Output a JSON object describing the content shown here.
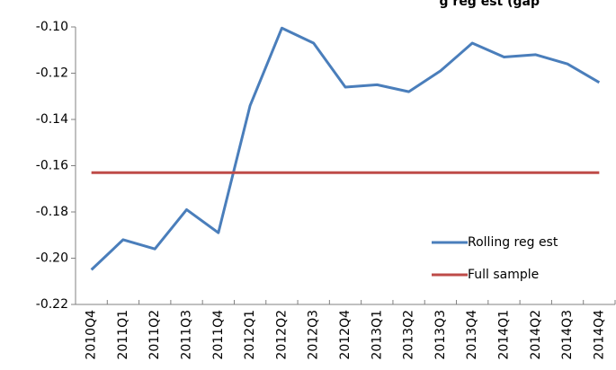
{
  "chart_data": {
    "type": "line",
    "title": "g reg est (gap",
    "categories": [
      "2010Q4",
      "2011Q1",
      "2011Q2",
      "2011Q3",
      "2011Q4",
      "2012Q1",
      "2012Q2",
      "2012Q3",
      "2012Q4",
      "2013Q1",
      "2013Q2",
      "2013Q3",
      "2013Q4",
      "2014Q1",
      "2014Q2",
      "2014Q3",
      "2014Q4"
    ],
    "series": [
      {
        "name": "Rolling reg est",
        "color": "#4a7ebb",
        "values": [
          -0.205,
          -0.192,
          -0.196,
          -0.179,
          -0.189,
          -0.134,
          -0.1005,
          -0.107,
          -0.126,
          -0.125,
          -0.128,
          -0.119,
          -0.107,
          -0.113,
          -0.112,
          -0.116,
          -0.124
        ]
      },
      {
        "name": "Full sample",
        "color": "#be4b48",
        "values": [
          -0.163,
          -0.163,
          -0.163,
          -0.163,
          -0.163,
          -0.163,
          -0.163,
          -0.163,
          -0.163,
          -0.163,
          -0.163,
          -0.163,
          -0.163,
          -0.163,
          -0.163,
          -0.163,
          -0.163
        ]
      }
    ],
    "ylim": [
      -0.22,
      -0.1
    ],
    "yticks": [
      {
        "value": -0.22,
        "label": "-0.22"
      },
      {
        "value": -0.2,
        "label": "-0.20"
      },
      {
        "value": -0.18,
        "label": "-0.18"
      },
      {
        "value": -0.16,
        "label": "-0.16"
      },
      {
        "value": -0.14,
        "label": "-0.14"
      },
      {
        "value": -0.12,
        "label": "-0.12"
      },
      {
        "value": -0.1,
        "label": "-0.10"
      }
    ],
    "grid": false,
    "legend": "lower-right"
  }
}
